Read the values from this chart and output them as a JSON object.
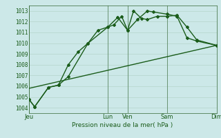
{
  "xlabel": "Pression niveau de la mer( hPa )",
  "bg_color": "#cce8e8",
  "grid_color": "#aaddcc",
  "line_color_dark": "#1a5c1a",
  "line_color_light": "#2e8b2e",
  "ylim": [
    1003.5,
    1013.5
  ],
  "xlim": [
    0,
    9.5
  ],
  "yticks": [
    1004,
    1005,
    1006,
    1007,
    1008,
    1009,
    1010,
    1011,
    1012,
    1013
  ],
  "day_labels": [
    "Jeu",
    "",
    "Lun",
    "Ven",
    "",
    "Sam",
    "",
    "Dim"
  ],
  "day_positions": [
    0.0,
    2.0,
    4.0,
    5.0,
    6.0,
    7.0,
    8.0,
    9.5
  ],
  "vline_positions": [
    0.0,
    4.0,
    5.0,
    7.0,
    9.5
  ],
  "vline_labels": [
    "Jeu",
    "Lun",
    "Ven",
    "Sam",
    "Dim"
  ],
  "series1_x": [
    0.0,
    0.3,
    1.0,
    1.5,
    2.0,
    2.5,
    3.0,
    3.5,
    4.0,
    4.3,
    4.7,
    5.0,
    5.3,
    5.7,
    6.0,
    6.5,
    7.0,
    7.5,
    8.0,
    8.5,
    9.5
  ],
  "series1_y": [
    1004.8,
    1004.1,
    1005.9,
    1006.1,
    1008.0,
    1009.2,
    1010.0,
    1011.2,
    1011.5,
    1011.7,
    1012.5,
    1011.2,
    1013.0,
    1012.3,
    1012.2,
    1012.5,
    1012.5,
    1012.6,
    1011.5,
    1010.3,
    1009.8
  ],
  "series2_x": [
    0.0,
    0.3,
    1.0,
    1.5,
    2.0,
    3.0,
    4.0,
    4.5,
    5.0,
    5.5,
    6.0,
    6.3,
    7.0,
    7.5,
    8.0,
    8.5,
    9.5
  ],
  "series2_y": [
    1004.8,
    1004.1,
    1005.9,
    1006.1,
    1006.9,
    1010.0,
    1011.5,
    1012.4,
    1011.2,
    1012.2,
    1013.0,
    1012.9,
    1012.7,
    1012.5,
    1010.5,
    1010.2,
    1009.8
  ],
  "series3_x": [
    0.0,
    9.5
  ],
  "series3_y": [
    1005.8,
    1009.8
  ],
  "marker_size": 4,
  "linewidth": 1.0
}
